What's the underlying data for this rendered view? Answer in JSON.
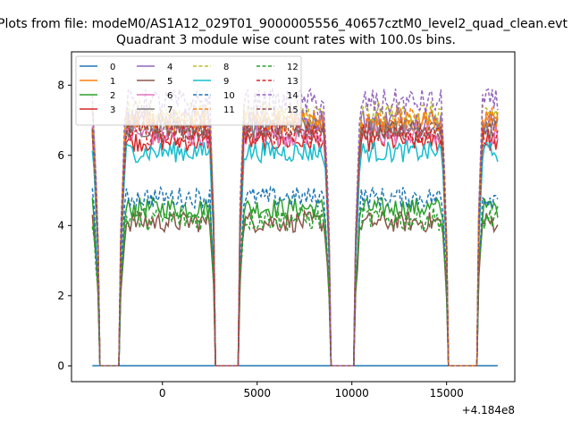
{
  "figure": {
    "suptitle": "Plots from file: modeM0/AS1A12_029T01_9000005556_40657cztM0_level2_quad_clean.evt",
    "title": "Quadrant 3 module wise count rates with 100.0s bins."
  },
  "chart_data": {
    "type": "line",
    "title": "Quadrant 3 module wise count rates with 100.0s bins.",
    "xlabel": "",
    "ylabel": "",
    "x_offset_label": "+4.184e8",
    "xlim": [
      -4800,
      18600
    ],
    "ylim": [
      -0.45,
      8.95
    ],
    "xticks": [
      0,
      5000,
      10000,
      15000
    ],
    "yticks": [
      0,
      2,
      4,
      6,
      8
    ],
    "grid": false,
    "legend": {
      "placement": "top-left",
      "columns": 4
    },
    "x_range": [
      -3700,
      17700
    ],
    "gaps": [
      [
        -3350,
        -2250
      ],
      [
        2800,
        4000
      ],
      [
        8850,
        10150
      ],
      [
        15050,
        16600
      ]
    ],
    "series": [
      {
        "name": "0",
        "color": "#1f77b4",
        "dash": "solid",
        "level": 0.0,
        "noise": 0.0
      },
      {
        "name": "1",
        "color": "#ff7f0e",
        "dash": "solid",
        "level": 6.9,
        "noise": 0.35
      },
      {
        "name": "2",
        "color": "#2ca02c",
        "dash": "solid",
        "level": 4.5,
        "noise": 0.3
      },
      {
        "name": "3",
        "color": "#d62728",
        "dash": "solid",
        "level": 6.4,
        "noise": 0.3
      },
      {
        "name": "4",
        "color": "#9467bd",
        "dash": "solid",
        "level": 7.0,
        "noise": 0.35
      },
      {
        "name": "5",
        "color": "#8c564b",
        "dash": "solid",
        "level": 4.1,
        "noise": 0.3
      },
      {
        "name": "6",
        "color": "#e377c2",
        "dash": "solid",
        "level": 6.6,
        "noise": 0.35
      },
      {
        "name": "7",
        "color": "#7f7f7f",
        "dash": "solid",
        "level": 6.8,
        "noise": 0.3
      },
      {
        "name": "8",
        "color": "#bcbd22",
        "dash": "dashed",
        "level": 7.2,
        "noise": 0.35
      },
      {
        "name": "9",
        "color": "#17becf",
        "dash": "solid",
        "level": 6.1,
        "noise": 0.3
      },
      {
        "name": "10",
        "color": "#1f77b4",
        "dash": "dashed",
        "level": 4.8,
        "noise": 0.3
      },
      {
        "name": "11",
        "color": "#ff7f0e",
        "dash": "dashed",
        "level": 7.0,
        "noise": 0.35
      },
      {
        "name": "12",
        "color": "#2ca02c",
        "dash": "dashed",
        "level": 4.2,
        "noise": 0.35
      },
      {
        "name": "13",
        "color": "#d62728",
        "dash": "dashed",
        "level": 6.6,
        "noise": 0.3
      },
      {
        "name": "14",
        "color": "#9467bd",
        "dash": "dashed",
        "level": 7.5,
        "noise": 0.4
      },
      {
        "name": "15",
        "color": "#8c564b",
        "dash": "dashed",
        "level": 6.7,
        "noise": 0.3
      }
    ]
  }
}
